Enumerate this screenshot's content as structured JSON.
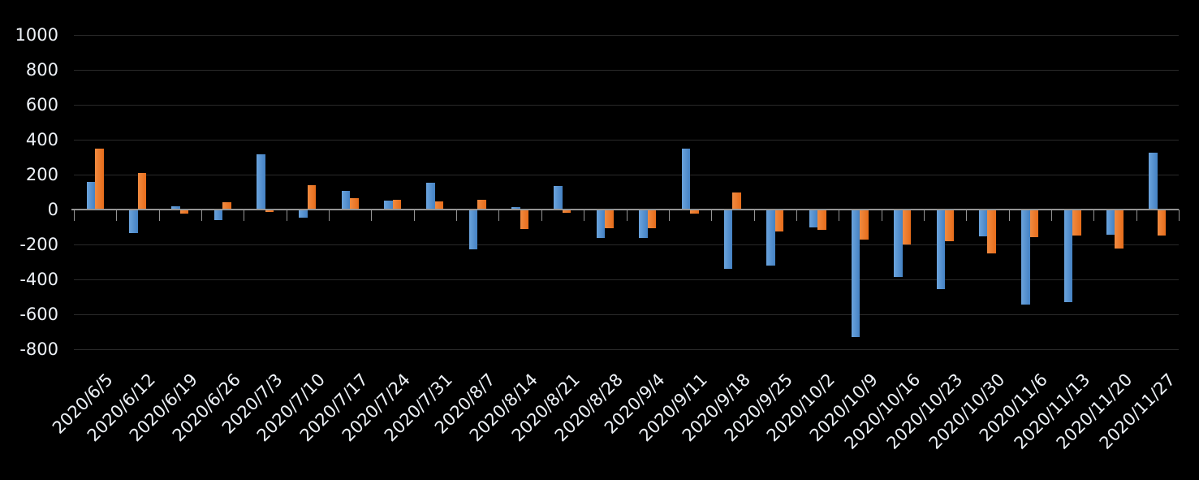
{
  "chart_data": {
    "type": "bar",
    "title": "",
    "xlabel": "",
    "ylabel": "",
    "categories": [
      "2020/6/5",
      "2020/6/12",
      "2020/6/19",
      "2020/6/26",
      "2020/7/3",
      "2020/7/10",
      "2020/7/17",
      "2020/7/24",
      "2020/7/31",
      "2020/8/7",
      "2020/8/14",
      "2020/8/21",
      "2020/8/28",
      "2020/9/4",
      "2020/9/11",
      "2020/9/18",
      "2020/9/25",
      "2020/10/2",
      "2020/10/9",
      "2020/10/16",
      "2020/10/23",
      "2020/10/30",
      "2020/11/6",
      "2020/11/13",
      "2020/11/20",
      "2020/11/27"
    ],
    "series": [
      {
        "name": "series-blue",
        "color_start": "#6BA4DD",
        "color_end": "#4481C3",
        "values": [
          160,
          -135,
          20,
          -60,
          315,
          -45,
          105,
          50,
          155,
          -230,
          15,
          135,
          -165,
          -165,
          350,
          -340,
          -320,
          -100,
          -730,
          -385,
          -455,
          -155,
          -545,
          -530,
          -145,
          325
        ]
      },
      {
        "name": "series-orange",
        "color_start": "#F18B41",
        "color_end": "#E66C1A",
        "values": [
          350,
          210,
          -25,
          40,
          -15,
          140,
          65,
          55,
          45,
          55,
          -110,
          -20,
          -105,
          -105,
          -25,
          100,
          -125,
          -115,
          -170,
          -200,
          -180,
          -250,
          -160,
          -150,
          -225,
          -150
        ]
      }
    ],
    "yticks": [
      1000,
      800,
      600,
      400,
      200,
      0,
      -200,
      -400,
      -600,
      -800
    ],
    "ylim": [
      -800,
      1000
    ],
    "grid": true,
    "legend": false
  },
  "style": {
    "background": "#000000",
    "gridline_color": "#2A2A2A",
    "axis_color": "#949494",
    "label_color": "#EDF1F6"
  }
}
